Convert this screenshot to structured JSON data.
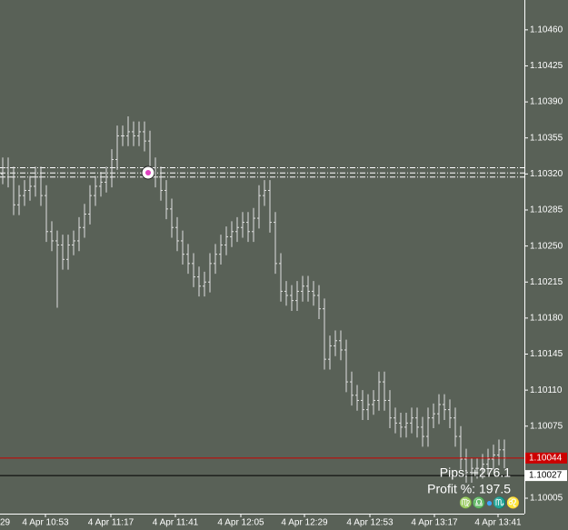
{
  "chart_data": {
    "type": "ohlc",
    "open": [
      1.1032,
      1.10326,
      1.10317,
      1.1029,
      1.10299,
      1.10304,
      1.10308,
      1.10317,
      1.10299,
      1.10264,
      1.10255,
      1.10251,
      1.10237,
      1.10251,
      1.10255,
      1.10268,
      1.10281,
      1.10299,
      1.10308,
      1.10312,
      1.10317,
      1.10334,
      1.10357,
      1.10357,
      1.10361,
      1.10357,
      1.10361,
      1.10352,
      1.10326,
      1.10317,
      1.10304,
      1.10286,
      1.10268,
      1.10255,
      1.10242,
      1.10233,
      1.1022,
      1.10211,
      1.10215,
      1.10233,
      1.10242,
      1.10251,
      1.10259,
      1.10264,
      1.10268,
      1.10273,
      1.10264,
      1.10277,
      1.10299,
      1.10304,
      1.10273,
      1.10233,
      1.10206,
      1.10202,
      1.10197,
      1.10206,
      1.10211,
      1.10206,
      1.10202,
      1.10189,
      1.1014,
      1.10153,
      1.10158,
      1.10149,
      1.10118,
      1.10105,
      1.101,
      1.10091,
      1.10096,
      1.101,
      1.10118,
      1.101,
      1.10083,
      1.10078,
      1.10074,
      1.10078,
      1.10083,
      1.10074,
      1.10065,
      1.10083,
      1.10087,
      1.10096,
      1.10091,
      1.10083,
      1.10065,
      1.10043,
      1.1003,
      1.10034,
      1.10034,
      1.10038,
      1.10043,
      1.10047,
      1.10052
    ],
    "high": [
      1.10336,
      1.10336,
      1.10327,
      1.10309,
      1.10314,
      1.10318,
      1.10327,
      1.10327,
      1.10309,
      1.10274,
      1.10265,
      1.10261,
      1.10261,
      1.10265,
      1.10278,
      1.10291,
      1.10309,
      1.10318,
      1.10322,
      1.10327,
      1.10344,
      1.10367,
      1.10367,
      1.10376,
      1.10371,
      1.10371,
      1.10371,
      1.10362,
      1.10336,
      1.10327,
      1.10314,
      1.10296,
      1.10278,
      1.10265,
      1.10252,
      1.10243,
      1.1023,
      1.10225,
      1.10243,
      1.10252,
      1.10261,
      1.10269,
      1.10274,
      1.10278,
      1.10283,
      1.10283,
      1.10287,
      1.10309,
      1.10314,
      1.10314,
      1.10283,
      1.10243,
      1.10216,
      1.10212,
      1.10216,
      1.10221,
      1.10221,
      1.10216,
      1.10212,
      1.10199,
      1.10163,
      1.10168,
      1.10168,
      1.10159,
      1.10128,
      1.10115,
      1.1011,
      1.10106,
      1.1011,
      1.10128,
      1.10128,
      1.1011,
      1.10093,
      1.10088,
      1.10088,
      1.10093,
      1.10093,
      1.10084,
      1.10093,
      1.10097,
      1.10106,
      1.10106,
      1.10101,
      1.10093,
      1.10075,
      1.10053,
      1.10044,
      1.10044,
      1.10048,
      1.10053,
      1.10057,
      1.10062,
      1.10062
    ],
    "low": [
      1.1031,
      1.10307,
      1.1028,
      1.1028,
      1.10289,
      1.10294,
      1.10298,
      1.10289,
      1.10254,
      1.10245,
      1.1019,
      1.10227,
      1.10227,
      1.10241,
      1.10245,
      1.10258,
      1.10271,
      1.10289,
      1.10298,
      1.10302,
      1.10307,
      1.10324,
      1.10347,
      1.10347,
      1.10347,
      1.10347,
      1.10342,
      1.10316,
      1.10307,
      1.10294,
      1.10276,
      1.10258,
      1.10245,
      1.10232,
      1.10223,
      1.1021,
      1.10201,
      1.10201,
      1.10205,
      1.10223,
      1.10232,
      1.10241,
      1.10249,
      1.10254,
      1.10258,
      1.10254,
      1.10254,
      1.10267,
      1.10289,
      1.10263,
      1.10223,
      1.10196,
      1.10192,
      1.10187,
      1.10187,
      1.10196,
      1.10196,
      1.10192,
      1.10179,
      1.1013,
      1.1013,
      1.10143,
      1.10139,
      1.10108,
      1.10095,
      1.1009,
      1.10081,
      1.10081,
      1.10086,
      1.1009,
      1.1009,
      1.10073,
      1.10068,
      1.10064,
      1.10064,
      1.10068,
      1.10064,
      1.10055,
      1.10055,
      1.10073,
      1.10077,
      1.10081,
      1.10073,
      1.10055,
      1.10033,
      1.1002,
      1.1002,
      1.10024,
      1.10024,
      1.10028,
      1.10033,
      1.10037,
      1.10034
    ],
    "close": [
      1.10326,
      1.10317,
      1.1029,
      1.10299,
      1.10304,
      1.10308,
      1.10317,
      1.10299,
      1.10264,
      1.10255,
      1.10251,
      1.10237,
      1.10251,
      1.10255,
      1.10268,
      1.10281,
      1.10299,
      1.10308,
      1.10312,
      1.10317,
      1.10334,
      1.10357,
      1.10357,
      1.10361,
      1.10357,
      1.10361,
      1.10352,
      1.10326,
      1.10317,
      1.10304,
      1.10286,
      1.10268,
      1.10255,
      1.10242,
      1.10233,
      1.1022,
      1.10211,
      1.10215,
      1.10233,
      1.10242,
      1.10251,
      1.10259,
      1.10264,
      1.10268,
      1.10273,
      1.10264,
      1.10277,
      1.10299,
      1.10304,
      1.10273,
      1.10233,
      1.10206,
      1.10202,
      1.10197,
      1.10206,
      1.10211,
      1.10206,
      1.10202,
      1.10189,
      1.1014,
      1.10153,
      1.10158,
      1.10149,
      1.10118,
      1.10105,
      1.101,
      1.10091,
      1.10096,
      1.101,
      1.10118,
      1.101,
      1.10083,
      1.10078,
      1.10074,
      1.10078,
      1.10083,
      1.10074,
      1.10065,
      1.10083,
      1.10087,
      1.10096,
      1.10091,
      1.10083,
      1.10065,
      1.10043,
      1.1003,
      1.10034,
      1.10034,
      1.10038,
      1.10043,
      1.10047,
      1.10052,
      1.10044
    ],
    "color": "#e0e0e0",
    "background": "#596157",
    "ylim": [
      1.0999,
      1.10489
    ],
    "yticks": [
      {
        "value": 1.1046,
        "label": "1.10460"
      },
      {
        "value": 1.10425,
        "label": "1.10425"
      },
      {
        "value": 1.1039,
        "label": "1.10390"
      },
      {
        "value": 1.10355,
        "label": "1.10355"
      },
      {
        "value": 1.1032,
        "label": "1.10320"
      },
      {
        "value": 1.10285,
        "label": "1.10285"
      },
      {
        "value": 1.1025,
        "label": "1.10250"
      },
      {
        "value": 1.10215,
        "label": "1.10215"
      },
      {
        "value": 1.1018,
        "label": "1.10180"
      },
      {
        "value": 1.10145,
        "label": "1.10145"
      },
      {
        "value": 1.1011,
        "label": "1.10110"
      },
      {
        "value": 1.10075,
        "label": "1.10075"
      },
      {
        "value": 1.10005,
        "label": "1.10005"
      }
    ],
    "x_labels": [
      "29",
      "4 Apr 10:53",
      "4 Apr 11:17",
      "4 Apr 11:41",
      "4 Apr 12:05",
      "4 Apr 12:29",
      "4 Apr 12:53",
      "4 Apr 13:17",
      "4 Apr 13:41"
    ],
    "levels": [
      1.10326,
      1.10321,
      1.10317
    ],
    "bid": {
      "value": 1.10044,
      "label": "1.10044",
      "color": "#cc0000"
    },
    "ask": {
      "value": 1.10027,
      "label": "1.10027",
      "color": "#000000"
    },
    "pips": "Pips: +276.1",
    "profit": "Profit %: 197.5",
    "signature": "♍♎●♏♌"
  }
}
